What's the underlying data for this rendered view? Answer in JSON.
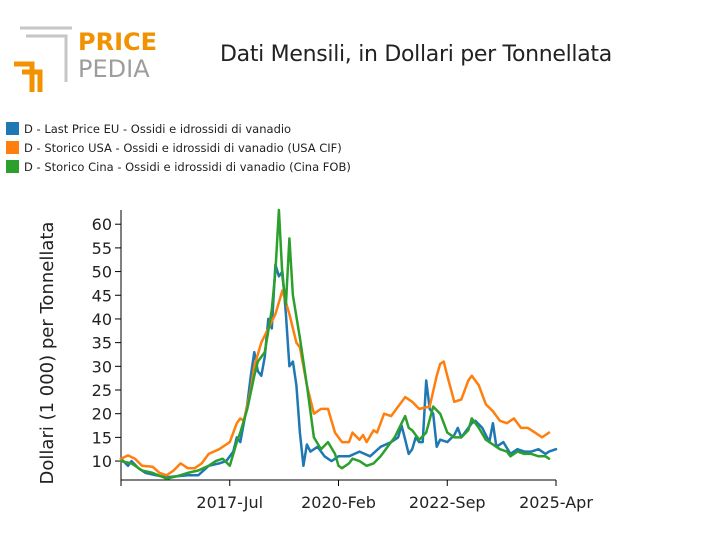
{
  "logo": {
    "line1": "PRICE",
    "line2": "PEDIA"
  },
  "colors": {
    "logo_orange": "#f39200",
    "logo_gray": "#9d9d9c",
    "logo_frame": "#c6c6c6"
  },
  "title": "Dati Mensili, in Dollari per Tonnellata",
  "chart_data": {
    "type": "line",
    "title": "Dati Mensili, in Dollari per Tonnellata",
    "xlabel": "",
    "ylabel": "Dollari (1 000) per Tonnellata",
    "ylim": [
      6,
      63
    ],
    "xlim": [
      "2014-12",
      "2025-04"
    ],
    "yticks": [
      10,
      15,
      20,
      25,
      30,
      35,
      40,
      45,
      50,
      55,
      60
    ],
    "xticks": [
      {
        "date": "2014-12",
        "label": ""
      },
      {
        "date": "2017-07",
        "label": "2017-Jul"
      },
      {
        "date": "2020-02",
        "label": "2020-Feb"
      },
      {
        "date": "2022-09",
        "label": "2022-Sep"
      },
      {
        "date": "2025-04",
        "label": "2025-Apr"
      }
    ],
    "grid": false,
    "legend_position": "top-left",
    "series": [
      {
        "name": "D - Last Price EU - Ossidi e idrossidi di vanadio",
        "color": "#1f77b4",
        "points": [
          [
            "2014-12",
            10.5
          ],
          [
            "2015-02",
            9.0
          ],
          [
            "2015-03",
            10.0
          ],
          [
            "2015-05",
            8.5
          ],
          [
            "2015-07",
            7.5
          ],
          [
            "2015-10",
            7.0
          ],
          [
            "2016-01",
            6.6
          ],
          [
            "2016-04",
            6.8
          ],
          [
            "2016-07",
            7.0
          ],
          [
            "2016-10",
            7.0
          ],
          [
            "2017-01",
            9.0
          ],
          [
            "2017-04",
            9.5
          ],
          [
            "2017-06",
            10.0
          ],
          [
            "2017-08",
            12.0
          ],
          [
            "2017-09",
            15.0
          ],
          [
            "2017-10",
            14.0
          ],
          [
            "2017-12",
            22.0
          ],
          [
            "2018-01",
            28.0
          ],
          [
            "2018-02",
            33.0
          ],
          [
            "2018-03",
            29.0
          ],
          [
            "2018-04",
            28.0
          ],
          [
            "2018-05",
            32.0
          ],
          [
            "2018-06",
            40.0
          ],
          [
            "2018-07",
            38.0
          ],
          [
            "2018-08",
            51.5
          ],
          [
            "2018-09",
            49.0
          ],
          [
            "2018-10",
            50.0
          ],
          [
            "2018-11",
            41.0
          ],
          [
            "2018-12",
            30.0
          ],
          [
            "2019-01",
            31.0
          ],
          [
            "2019-02",
            26.0
          ],
          [
            "2019-03",
            16.0
          ],
          [
            "2019-04",
            9.0
          ],
          [
            "2019-05",
            13.5
          ],
          [
            "2019-06",
            12.0
          ],
          [
            "2019-08",
            13.0
          ],
          [
            "2019-10",
            11.0
          ],
          [
            "2019-12",
            10.0
          ],
          [
            "2020-02",
            11.0
          ],
          [
            "2020-05",
            11.0
          ],
          [
            "2020-08",
            12.0
          ],
          [
            "2020-11",
            11.0
          ],
          [
            "2021-02",
            13.0
          ],
          [
            "2021-05",
            14.0
          ],
          [
            "2021-07",
            15.0
          ],
          [
            "2021-08",
            17.5
          ],
          [
            "2021-09",
            14.5
          ],
          [
            "2021-10",
            11.5
          ],
          [
            "2021-11",
            12.5
          ],
          [
            "2021-12",
            15.0
          ],
          [
            "2022-01",
            14.0
          ],
          [
            "2022-02",
            14.0
          ],
          [
            "2022-03",
            27.0
          ],
          [
            "2022-04",
            21.0
          ],
          [
            "2022-05",
            20.0
          ],
          [
            "2022-06",
            13.0
          ],
          [
            "2022-07",
            14.5
          ],
          [
            "2022-09",
            14.0
          ],
          [
            "2022-11",
            15.5
          ],
          [
            "2022-12",
            17.0
          ],
          [
            "2023-01",
            15.0
          ],
          [
            "2023-02",
            16.0
          ],
          [
            "2023-03",
            17.0
          ],
          [
            "2023-04",
            18.0
          ],
          [
            "2023-05",
            18.5
          ],
          [
            "2023-07",
            17.0
          ],
          [
            "2023-09",
            14.0
          ],
          [
            "2023-10",
            18.0
          ],
          [
            "2023-11",
            13.0
          ],
          [
            "2024-01",
            14.0
          ],
          [
            "2024-03",
            11.5
          ],
          [
            "2024-05",
            12.5
          ],
          [
            "2024-07",
            12.0
          ],
          [
            "2024-09",
            12.0
          ],
          [
            "2024-11",
            12.5
          ],
          [
            "2025-01",
            11.5
          ],
          [
            "2025-02",
            12.0
          ],
          [
            "2025-04",
            12.5
          ]
        ]
      },
      {
        "name": "D - Storico USA - Ossidi e idrossidi di vanadio (USA CIF)",
        "color": "#ff7f0e",
        "points": [
          [
            "2014-12",
            10.5
          ],
          [
            "2015-02",
            11.2
          ],
          [
            "2015-04",
            10.5
          ],
          [
            "2015-06",
            9.0
          ],
          [
            "2015-09",
            8.8
          ],
          [
            "2015-11",
            7.5
          ],
          [
            "2016-01",
            7.0
          ],
          [
            "2016-03",
            8.0
          ],
          [
            "2016-05",
            9.5
          ],
          [
            "2016-07",
            8.5
          ],
          [
            "2016-09",
            8.5
          ],
          [
            "2016-11",
            9.5
          ],
          [
            "2017-01",
            11.5
          ],
          [
            "2017-04",
            12.5
          ],
          [
            "2017-06",
            13.5
          ],
          [
            "2017-07",
            14.0
          ],
          [
            "2017-09",
            18.0
          ],
          [
            "2017-10",
            19.0
          ],
          [
            "2017-11",
            18.5
          ],
          [
            "2018-01",
            25.0
          ],
          [
            "2018-02",
            30.0
          ],
          [
            "2018-04",
            35.0
          ],
          [
            "2018-06",
            38.0
          ],
          [
            "2018-08",
            41.0
          ],
          [
            "2018-10",
            46.0
          ],
          [
            "2018-12",
            41.0
          ],
          [
            "2019-02",
            35.0
          ],
          [
            "2019-03",
            34.0
          ],
          [
            "2019-05",
            26.0
          ],
          [
            "2019-07",
            20.0
          ],
          [
            "2019-09",
            21.0
          ],
          [
            "2019-11",
            21.0
          ],
          [
            "2020-01",
            16.0
          ],
          [
            "2020-03",
            14.0
          ],
          [
            "2020-05",
            14.0
          ],
          [
            "2020-06",
            16.0
          ],
          [
            "2020-08",
            14.5
          ],
          [
            "2020-09",
            15.5
          ],
          [
            "2020-10",
            14.0
          ],
          [
            "2020-12",
            16.5
          ],
          [
            "2021-01",
            16.0
          ],
          [
            "2021-03",
            20.0
          ],
          [
            "2021-05",
            19.5
          ],
          [
            "2021-07",
            21.5
          ],
          [
            "2021-09",
            23.5
          ],
          [
            "2021-11",
            22.5
          ],
          [
            "2022-01",
            21.0
          ],
          [
            "2022-04",
            21.5
          ],
          [
            "2022-06",
            28.0
          ],
          [
            "2022-07",
            30.5
          ],
          [
            "2022-08",
            31.0
          ],
          [
            "2022-09",
            28.0
          ],
          [
            "2022-11",
            22.5
          ],
          [
            "2023-01",
            23.0
          ],
          [
            "2023-03",
            27.0
          ],
          [
            "2023-04",
            28.0
          ],
          [
            "2023-06",
            26.0
          ],
          [
            "2023-08",
            22.0
          ],
          [
            "2023-10",
            20.5
          ],
          [
            "2023-12",
            18.5
          ],
          [
            "2024-02",
            18.0
          ],
          [
            "2024-04",
            19.0
          ],
          [
            "2024-06",
            17.0
          ],
          [
            "2024-08",
            17.0
          ],
          [
            "2024-10",
            16.0
          ],
          [
            "2024-12",
            15.0
          ],
          [
            "2025-02",
            16.0
          ]
        ]
      },
      {
        "name": "D - Storico Cina - Ossidi e idrossidi di vanadio (Cina FOB)",
        "color": "#2ca02c",
        "points": [
          [
            "2014-12",
            10.0
          ],
          [
            "2015-03",
            9.5
          ],
          [
            "2015-06",
            8.0
          ],
          [
            "2015-09",
            7.5
          ],
          [
            "2016-01",
            6.3
          ],
          [
            "2016-04",
            6.8
          ],
          [
            "2016-07",
            7.5
          ],
          [
            "2016-10",
            8.0
          ],
          [
            "2017-01",
            9.0
          ],
          [
            "2017-03",
            10.0
          ],
          [
            "2017-05",
            10.5
          ],
          [
            "2017-07",
            9.0
          ],
          [
            "2017-09",
            14.0
          ],
          [
            "2017-10",
            16.0
          ],
          [
            "2017-12",
            21.0
          ],
          [
            "2018-02",
            28.0
          ],
          [
            "2018-03",
            31.0
          ],
          [
            "2018-05",
            33.0
          ],
          [
            "2018-07",
            42.0
          ],
          [
            "2018-08",
            50.0
          ],
          [
            "2018-09",
            63.0
          ],
          [
            "2018-10",
            49.0
          ],
          [
            "2018-11",
            43.0
          ],
          [
            "2018-12",
            57.0
          ],
          [
            "2019-01",
            45.0
          ],
          [
            "2019-03",
            36.0
          ],
          [
            "2019-05",
            26.0
          ],
          [
            "2019-07",
            15.0
          ],
          [
            "2019-09",
            12.5
          ],
          [
            "2019-11",
            14.0
          ],
          [
            "2020-01",
            11.5
          ],
          [
            "2020-02",
            9.0
          ],
          [
            "2020-03",
            8.5
          ],
          [
            "2020-05",
            9.5
          ],
          [
            "2020-06",
            10.5
          ],
          [
            "2020-08",
            10.0
          ],
          [
            "2020-10",
            9.0
          ],
          [
            "2020-12",
            9.5
          ],
          [
            "2021-02",
            11.0
          ],
          [
            "2021-04",
            13.0
          ],
          [
            "2021-06",
            15.0
          ],
          [
            "2021-08",
            18.0
          ],
          [
            "2021-09",
            19.5
          ],
          [
            "2021-10",
            17.0
          ],
          [
            "2021-11",
            16.5
          ],
          [
            "2022-01",
            14.5
          ],
          [
            "2022-03",
            16.0
          ],
          [
            "2022-05",
            21.5
          ],
          [
            "2022-07",
            20.0
          ],
          [
            "2022-09",
            16.0
          ],
          [
            "2022-11",
            15.0
          ],
          [
            "2023-01",
            15.0
          ],
          [
            "2023-03",
            16.5
          ],
          [
            "2023-04",
            19.0
          ],
          [
            "2023-06",
            17.0
          ],
          [
            "2023-08",
            14.5
          ],
          [
            "2023-10",
            13.5
          ],
          [
            "2023-12",
            12.5
          ],
          [
            "2024-02",
            12.0
          ],
          [
            "2024-03",
            11.0
          ],
          [
            "2024-05",
            12.0
          ],
          [
            "2024-07",
            11.5
          ],
          [
            "2024-09",
            11.5
          ],
          [
            "2024-11",
            11.0
          ],
          [
            "2025-01",
            11.0
          ],
          [
            "2025-02",
            10.5
          ]
        ]
      }
    ]
  }
}
